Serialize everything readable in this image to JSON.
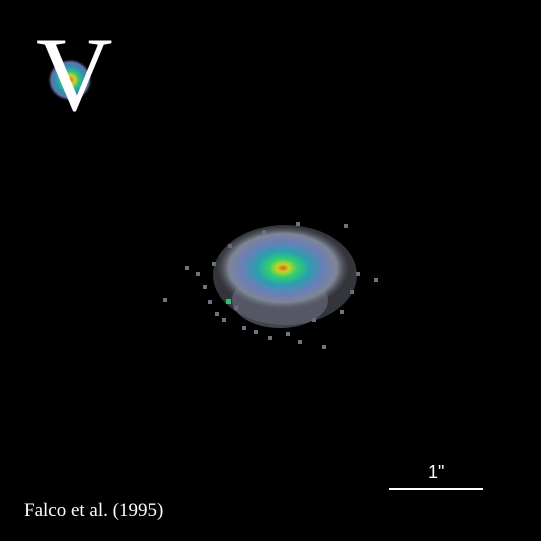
{
  "image": {
    "band_label": "V",
    "scale_label": "1\"",
    "credit": "Falco et al. (1995)",
    "colors": {
      "background": "#000000",
      "halo": "#8a8f9c",
      "outer": "#6f7fb8",
      "mid": "#2f8fb8",
      "inner": "#2fbf7f",
      "bright": "#c8e020",
      "core": "#e2572a",
      "text": "#ffffff"
    }
  }
}
